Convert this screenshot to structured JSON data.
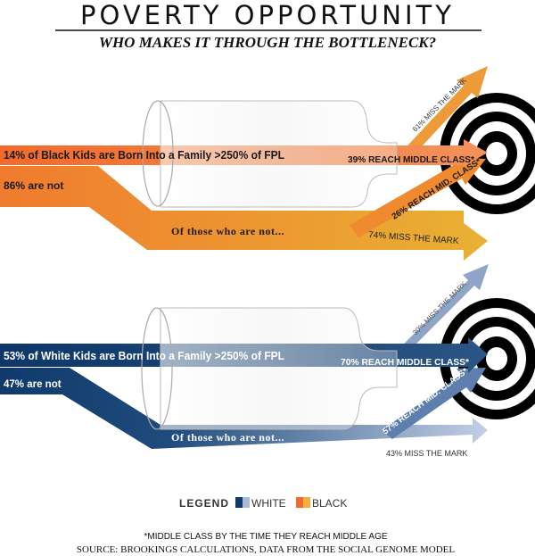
{
  "title": "POVERTY OPPORTUNITY",
  "subtitle": "WHO MAKES IT THROUGH THE BOTTLENECK?",
  "colors": {
    "black_dark": "#f26b2a",
    "black_light": "#e9b133",
    "white_dark": "#0f3a6b",
    "white_light": "#b7c5df",
    "target": "#000000"
  },
  "black": {
    "born_above": "14% of Black Kids are Born Into a Family >250% of FPL",
    "not": "86% are not",
    "of_those": "Of those who are not...",
    "reach": "39% REACH MIDDLE CLASS*",
    "miss_top": "61% MISS THE MARK",
    "reach_lower": "26% REACH MID. CLASS*",
    "miss_lower": "74% MISS THE MARK"
  },
  "white": {
    "born_above": "53% of White Kids are Born Into a Family >250% of FPL",
    "not": "47% are not",
    "of_those": "Of those who are not...",
    "reach": "70% REACH MIDDLE CLASS*",
    "miss_top": "30% MISS THE MARK",
    "reach_lower": "57% REACH MID. CLASS*",
    "miss_lower": "43% MISS THE MARK"
  },
  "legend": {
    "label": "LEGEND",
    "white": "WHITE",
    "black": "BLACK"
  },
  "footnote": "*MIDDLE CLASS BY THE TIME THEY REACH MIDDLE AGE",
  "source": "SOURCE: BROOKINGS CALCULATIONS, DATA FROM THE SOCIAL GENOME MODEL"
}
